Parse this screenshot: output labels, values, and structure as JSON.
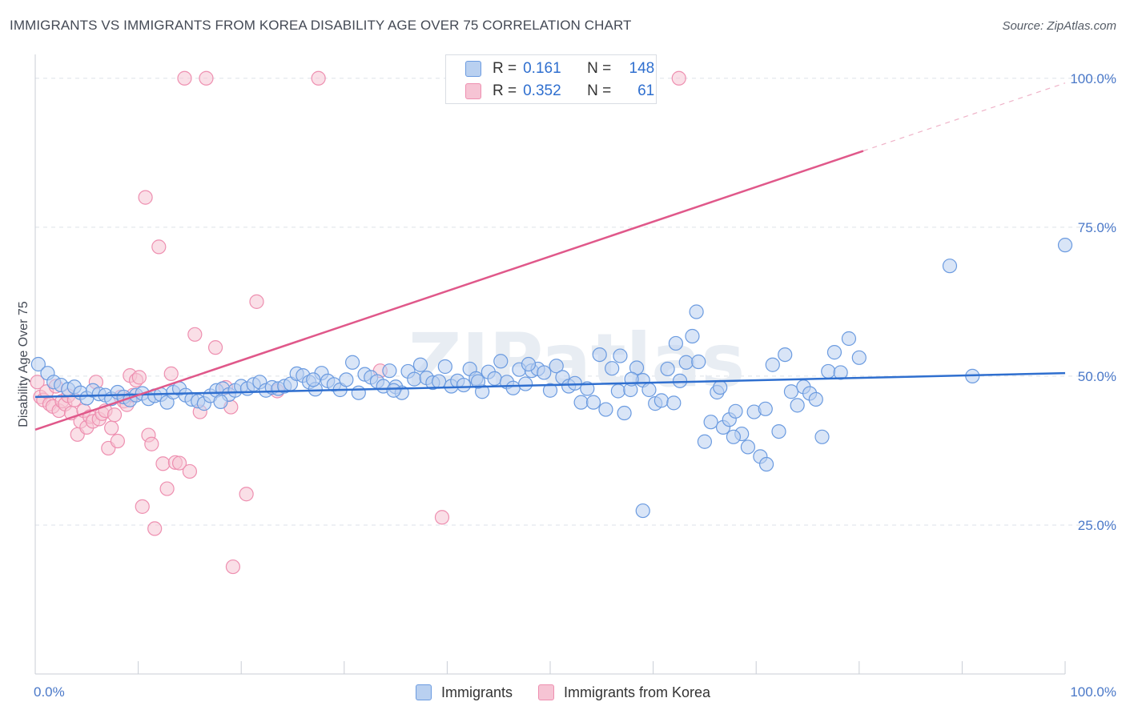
{
  "title": "IMMIGRANTS VS IMMIGRANTS FROM KOREA DISABILITY AGE OVER 75 CORRELATION CHART",
  "source": "Source: ZipAtlas.com",
  "watermark": "ZIPatlas",
  "colors": {
    "blue": "#6b9be0",
    "blue_fill": "#b9d0f0",
    "blue_line": "#2f6fcf",
    "pink": "#ee8fb0",
    "pink_fill": "#f6c4d4",
    "pink_line": "#e0588a",
    "grid": "#dde2e8",
    "tick_text": "#4a78c8"
  },
  "legend": {
    "rows": [
      {
        "r_label": "R =",
        "r_value": "0.161",
        "n_label": "N =",
        "n_value": "148"
      },
      {
        "r_label": "R =",
        "r_value": "0.352",
        "n_label": "N =",
        "n_value": "61"
      }
    ]
  },
  "bottom_legend": {
    "items": [
      "Immigrants",
      "Immigrants from Korea"
    ]
  },
  "chart_data": {
    "type": "scatter",
    "title": "IMMIGRANTS VS IMMIGRANTS FROM KOREA DISABILITY AGE OVER 75 CORRELATION CHART",
    "xlabel": "",
    "ylabel": "Disability Age Over 75",
    "xlim": [
      0,
      100
    ],
    "ylim": [
      0,
      104
    ],
    "x_tick_labels": [
      "0.0%",
      "100.0%"
    ],
    "y_ticks": [
      25,
      50,
      75,
      100
    ],
    "y_tick_labels": [
      "25.0%",
      "50.0%",
      "75.0%",
      "100.0%"
    ],
    "grid": true,
    "legend_position": "top-center",
    "series": [
      {
        "name": "Immigrants",
        "trend": {
          "x0": 0,
          "y0": 46.5,
          "x1": 100,
          "y1": 50.5
        },
        "points": [
          [
            0.3,
            52.0
          ],
          [
            1.2,
            50.5
          ],
          [
            1.8,
            49.0
          ],
          [
            2.5,
            48.5
          ],
          [
            3.2,
            47.8
          ],
          [
            3.8,
            48.2
          ],
          [
            4.4,
            47.2
          ],
          [
            5.0,
            46.3
          ],
          [
            5.6,
            47.6
          ],
          [
            6.2,
            47.0
          ],
          [
            6.8,
            46.8
          ],
          [
            7.4,
            46.2
          ],
          [
            8.0,
            47.3
          ],
          [
            8.6,
            46.5
          ],
          [
            9.2,
            46.0
          ],
          [
            9.8,
            46.8
          ],
          [
            10.4,
            47.1
          ],
          [
            11.0,
            46.2
          ],
          [
            11.6,
            46.7
          ],
          [
            12.2,
            46.9
          ],
          [
            12.8,
            45.6
          ],
          [
            13.4,
            47.3
          ],
          [
            14.0,
            47.9
          ],
          [
            14.6,
            46.8
          ],
          [
            15.2,
            46.1
          ],
          [
            15.8,
            45.8
          ],
          [
            16.4,
            45.4
          ],
          [
            17.0,
            46.7
          ],
          [
            17.6,
            47.6
          ],
          [
            18.2,
            47.9
          ],
          [
            18.8,
            46.9
          ],
          [
            19.4,
            47.6
          ],
          [
            20.0,
            48.3
          ],
          [
            20.6,
            47.9
          ],
          [
            21.2,
            48.6
          ],
          [
            21.8,
            49.0
          ],
          [
            22.4,
            47.6
          ],
          [
            23.0,
            48.1
          ],
          [
            23.6,
            47.9
          ],
          [
            24.2,
            48.3
          ],
          [
            24.8,
            48.7
          ],
          [
            25.4,
            50.4
          ],
          [
            26.0,
            50.1
          ],
          [
            26.6,
            49.0
          ],
          [
            27.2,
            47.8
          ],
          [
            27.8,
            50.5
          ],
          [
            28.4,
            49.2
          ],
          [
            29.0,
            48.6
          ],
          [
            29.6,
            47.7
          ],
          [
            30.2,
            49.4
          ],
          [
            30.8,
            52.3
          ],
          [
            31.4,
            47.2
          ],
          [
            32.0,
            50.3
          ],
          [
            32.6,
            49.8
          ],
          [
            33.2,
            49.1
          ],
          [
            33.8,
            48.3
          ],
          [
            34.4,
            50.9
          ],
          [
            35.0,
            48.2
          ],
          [
            35.6,
            47.2
          ],
          [
            36.2,
            50.8
          ],
          [
            36.8,
            49.5
          ],
          [
            37.4,
            51.9
          ],
          [
            38.0,
            49.7
          ],
          [
            38.6,
            48.9
          ],
          [
            39.2,
            49.1
          ],
          [
            39.8,
            51.6
          ],
          [
            40.4,
            48.3
          ],
          [
            41.0,
            49.2
          ],
          [
            41.6,
            48.5
          ],
          [
            42.2,
            51.2
          ],
          [
            42.8,
            49.6
          ],
          [
            43.4,
            47.4
          ],
          [
            44.0,
            50.7
          ],
          [
            44.6,
            49.6
          ],
          [
            45.2,
            52.5
          ],
          [
            45.8,
            49.0
          ],
          [
            46.4,
            48.0
          ],
          [
            47.0,
            51.1
          ],
          [
            47.6,
            48.7
          ],
          [
            48.2,
            50.9
          ],
          [
            48.8,
            51.2
          ],
          [
            49.4,
            50.6
          ],
          [
            50.0,
            47.6
          ],
          [
            50.6,
            51.7
          ],
          [
            51.2,
            49.8
          ],
          [
            51.8,
            48.3
          ],
          [
            52.4,
            48.8
          ],
          [
            53.0,
            45.6
          ],
          [
            53.6,
            47.9
          ],
          [
            54.2,
            45.6
          ],
          [
            54.8,
            53.6
          ],
          [
            55.4,
            44.4
          ],
          [
            56.0,
            51.3
          ],
          [
            56.6,
            47.5
          ],
          [
            57.2,
            43.8
          ],
          [
            57.8,
            47.7
          ],
          [
            58.4,
            51.4
          ],
          [
            59.0,
            49.3
          ],
          [
            59.6,
            47.7
          ],
          [
            60.2,
            45.4
          ],
          [
            60.8,
            45.9
          ],
          [
            61.4,
            51.2
          ],
          [
            62.0,
            45.5
          ],
          [
            62.6,
            49.2
          ],
          [
            63.2,
            52.3
          ],
          [
            63.8,
            56.7
          ],
          [
            64.4,
            52.4
          ],
          [
            65.0,
            39.0
          ],
          [
            65.6,
            42.3
          ],
          [
            66.2,
            47.3
          ],
          [
            66.8,
            41.4
          ],
          [
            67.4,
            42.7
          ],
          [
            68.0,
            44.1
          ],
          [
            68.6,
            40.3
          ],
          [
            69.2,
            38.1
          ],
          [
            69.8,
            44.0
          ],
          [
            70.4,
            36.5
          ],
          [
            71.0,
            35.2
          ],
          [
            71.6,
            51.9
          ],
          [
            72.2,
            40.7
          ],
          [
            72.8,
            53.6
          ],
          [
            73.4,
            47.4
          ],
          [
            74.0,
            45.1
          ],
          [
            74.6,
            48.2
          ],
          [
            75.2,
            47.1
          ],
          [
            75.8,
            46.1
          ],
          [
            76.4,
            39.8
          ],
          [
            77.0,
            50.8
          ],
          [
            77.6,
            54.0
          ],
          [
            78.2,
            50.6
          ],
          [
            79.0,
            56.3
          ],
          [
            80.0,
            53.1
          ],
          [
            64.2,
            60.8
          ],
          [
            59.0,
            27.4
          ],
          [
            62.2,
            55.5
          ],
          [
            56.8,
            53.4
          ],
          [
            88.8,
            68.5
          ],
          [
            91.0,
            50.0
          ],
          [
            100.0,
            72.0
          ],
          [
            66.5,
            48.1
          ],
          [
            18.0,
            45.7
          ],
          [
            27.0,
            49.4
          ],
          [
            34.8,
            47.6
          ],
          [
            43.0,
            49.1
          ],
          [
            47.9,
            52.0
          ],
          [
            57.9,
            49.5
          ],
          [
            67.8,
            39.8
          ],
          [
            70.9,
            44.5
          ]
        ]
      },
      {
        "name": "Immigrants from Korea",
        "trend": {
          "x0": 0,
          "y0": 41.0,
          "x1": 80.4,
          "y1": 87.8
        },
        "trend_dashed": {
          "x0": 80.4,
          "y0": 87.8,
          "x1": 100,
          "y1": 99.2
        },
        "points": [
          [
            0.2,
            49.0
          ],
          [
            0.5,
            46.5
          ],
          [
            0.8,
            46.0
          ],
          [
            1.1,
            47.4
          ],
          [
            1.4,
            45.3
          ],
          [
            1.7,
            44.9
          ],
          [
            2.0,
            48.3
          ],
          [
            2.3,
            44.2
          ],
          [
            2.6,
            45.8
          ],
          [
            2.9,
            45.3
          ],
          [
            3.2,
            46.7
          ],
          [
            3.5,
            43.8
          ],
          [
            3.8,
            46.0
          ],
          [
            4.1,
            40.2
          ],
          [
            4.4,
            42.4
          ],
          [
            4.7,
            44.2
          ],
          [
            5.0,
            41.4
          ],
          [
            5.3,
            43.2
          ],
          [
            5.6,
            42.4
          ],
          [
            5.9,
            49.0
          ],
          [
            6.2,
            42.8
          ],
          [
            6.5,
            43.7
          ],
          [
            6.8,
            44.2
          ],
          [
            7.1,
            37.9
          ],
          [
            7.4,
            41.3
          ],
          [
            7.7,
            43.5
          ],
          [
            8.0,
            39.1
          ],
          [
            8.3,
            46.5
          ],
          [
            8.6,
            45.8
          ],
          [
            8.9,
            45.2
          ],
          [
            9.2,
            50.1
          ],
          [
            9.5,
            46.8
          ],
          [
            9.8,
            49.3
          ],
          [
            10.1,
            49.8
          ],
          [
            10.4,
            28.1
          ],
          [
            10.7,
            80.0
          ],
          [
            11.0,
            40.1
          ],
          [
            11.3,
            38.6
          ],
          [
            11.6,
            24.4
          ],
          [
            12.0,
            71.7
          ],
          [
            12.4,
            35.3
          ],
          [
            12.8,
            31.1
          ],
          [
            13.2,
            50.4
          ],
          [
            13.6,
            35.5
          ],
          [
            14.0,
            35.4
          ],
          [
            14.5,
            100.0
          ],
          [
            15.0,
            34.0
          ],
          [
            15.5,
            57.0
          ],
          [
            16.0,
            44.0
          ],
          [
            16.6,
            100.0
          ],
          [
            17.5,
            54.8
          ],
          [
            18.5,
            48.1
          ],
          [
            19.2,
            18.0
          ],
          [
            19.0,
            44.8
          ],
          [
            20.5,
            30.2
          ],
          [
            21.5,
            62.5
          ],
          [
            23.5,
            47.5
          ],
          [
            27.5,
            100.0
          ],
          [
            33.5,
            50.9
          ],
          [
            39.5,
            26.3
          ],
          [
            62.5,
            100.0
          ]
        ]
      }
    ]
  }
}
